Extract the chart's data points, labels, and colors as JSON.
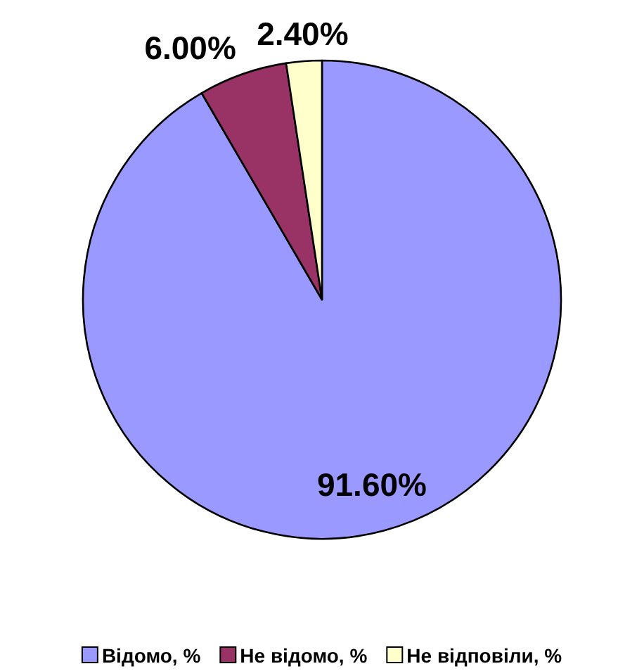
{
  "chart_data": {
    "type": "pie",
    "categories": [
      "Відомо, %",
      "Не відомо, %",
      "Не відповіли, %"
    ],
    "values": [
      91.6,
      6.0,
      2.4
    ],
    "colors": [
      "#9999ff",
      "#993366",
      "#ffffcc"
    ],
    "value_labels": [
      "91.60%",
      "6.00%",
      "2.40%"
    ],
    "legend": "bottom"
  }
}
